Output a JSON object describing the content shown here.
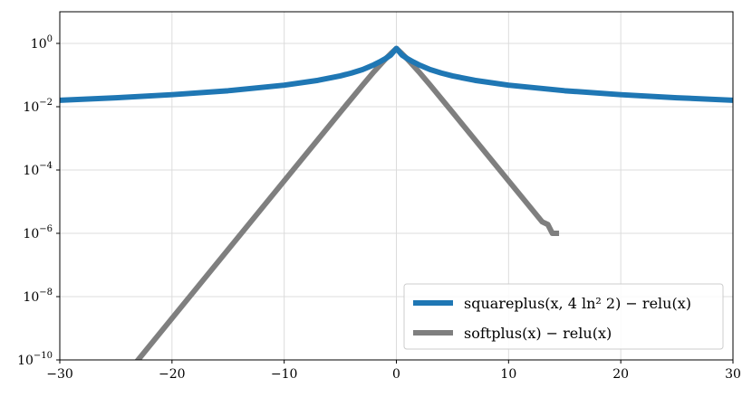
{
  "chart_data": {
    "type": "line",
    "xlim": [
      -30,
      30
    ],
    "ylim": [
      1e-10,
      10
    ],
    "yscale": "log",
    "grid": true,
    "legend_location": "lower-right",
    "x_ticks": [
      -30,
      -20,
      -10,
      0,
      10,
      20,
      30
    ],
    "x_tick_labels": [
      "−30",
      "−20",
      "−10",
      "0",
      "10",
      "20",
      "30"
    ],
    "y_ticks": [
      1e-10,
      1e-08,
      1e-06,
      0.0001,
      0.01,
      1
    ],
    "y_tick_base": "10",
    "y_tick_exponents": [
      "−10",
      "−8",
      "−6",
      "−4",
      "−2",
      "0"
    ],
    "series": [
      {
        "name": "squareplus(x, 4 ln² 2) − relu(x)",
        "color": "#1f77b4",
        "x": [
          -30,
          -25,
          -20,
          -15,
          -10,
          -7,
          -5,
          -4,
          -3,
          -2,
          -1.5,
          -1,
          -0.5,
          0,
          0.5,
          1,
          1.5,
          2,
          3,
          4,
          5,
          7,
          10,
          15,
          20,
          25,
          30
        ],
        "y": [
          0.016,
          0.0192,
          0.024,
          0.032,
          0.0479,
          0.068,
          0.094,
          0.116,
          0.15,
          0.212,
          0.26,
          0.327,
          0.43,
          0.693,
          0.43,
          0.327,
          0.26,
          0.212,
          0.15,
          0.116,
          0.094,
          0.068,
          0.0479,
          0.032,
          0.024,
          0.0192,
          0.016
        ]
      },
      {
        "name": "softplus(x) − relu(x)",
        "color": "#7f7f7f",
        "x": [
          -23.5,
          -20,
          -15,
          -10,
          -5,
          -3,
          -2,
          -1,
          -0.5,
          0,
          0.5,
          1,
          2,
          3,
          5,
          10,
          13,
          13.5,
          13.9,
          14.0,
          14.5
        ],
        "y": [
          6.2e-11,
          2.06e-09,
          3.06e-07,
          4.54e-05,
          0.0067,
          0.0486,
          0.127,
          0.313,
          0.474,
          0.693,
          0.474,
          0.313,
          0.127,
          0.0486,
          0.0067,
          4.54e-05,
          2.3e-06,
          1.9e-06,
          1e-06,
          1e-06,
          1e-06
        ]
      }
    ]
  }
}
